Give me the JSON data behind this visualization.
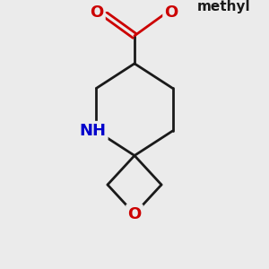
{
  "bg_color": "#ebebeb",
  "bond_color": "#1a1a1a",
  "o_color": "#cc0000",
  "n_color": "#0000cc",
  "bond_width": 2.0,
  "font_size_atom": 13,
  "font_size_methyl": 11,
  "fig_size": [
    3.0,
    3.0
  ],
  "dpi": 100,
  "xlim": [
    -2.2,
    2.2
  ],
  "ylim": [
    -2.5,
    3.2
  ]
}
